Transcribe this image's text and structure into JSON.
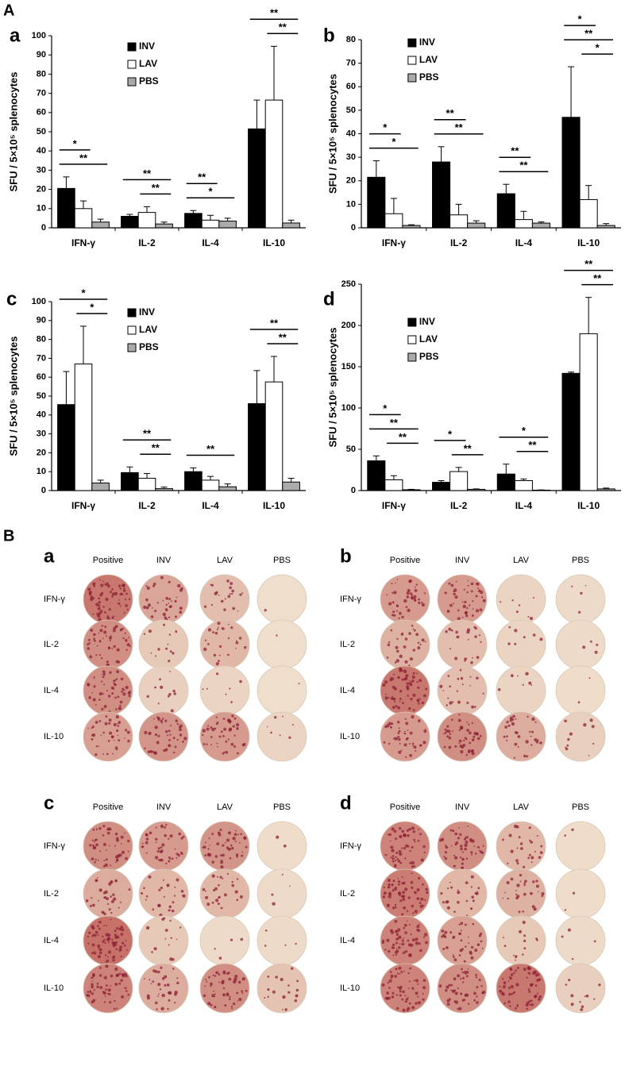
{
  "figure_labels": [
    "A",
    "B"
  ],
  "chart_data": [
    {
      "type": "bar",
      "label": "a",
      "ylabel": "SFU / 5×10⁵ splenocytes",
      "legend": "upper center",
      "categories": [
        "IFN-γ",
        "IL-2",
        "IL-4",
        "IL-10"
      ],
      "series": [
        {
          "name": "INV",
          "color": "#000000",
          "values": [
            20.5,
            6,
            7.5,
            51.5
          ],
          "errors": [
            6,
            1,
            1.5,
            15
          ]
        },
        {
          "name": "LAV",
          "color": "#ffffff",
          "values": [
            10,
            8,
            4,
            66.5
          ],
          "errors": [
            4,
            3,
            2.5,
            28
          ]
        },
        {
          "name": "PBS",
          "color": "#aaaaaa",
          "values": [
            3,
            2,
            3.5,
            2.5
          ],
          "errors": [
            1.5,
            1,
            1.5,
            1.5
          ]
        }
      ],
      "ylim": [
        0,
        100
      ],
      "yticks": [
        0,
        10,
        20,
        30,
        40,
        50,
        60,
        70,
        80,
        90,
        100
      ],
      "annotations": [
        "*",
        "**",
        "**",
        "**",
        "**",
        "*",
        "**",
        "**"
      ]
    },
    {
      "type": "bar",
      "label": "b",
      "ylabel": "SFU / 5×10⁵ splenocytes",
      "legend": "upper left",
      "categories": [
        "IFN-γ",
        "IL-2",
        "IL-4",
        "IL-10"
      ],
      "series": [
        {
          "name": "INV",
          "color": "#000000",
          "values": [
            21.5,
            28,
            14.5,
            47
          ],
          "errors": [
            7,
            6.5,
            4,
            21.5
          ]
        },
        {
          "name": "LAV",
          "color": "#ffffff",
          "values": [
            6,
            5.5,
            3.5,
            12
          ],
          "errors": [
            6.5,
            4.5,
            3.5,
            6
          ]
        },
        {
          "name": "PBS",
          "color": "#aaaaaa",
          "values": [
            1,
            2,
            2,
            1
          ],
          "errors": [
            0.3,
            1,
            0.5,
            0.8
          ]
        }
      ],
      "ylim": [
        0,
        80
      ],
      "yticks": [
        0,
        10,
        20,
        30,
        40,
        50,
        60,
        70,
        80
      ],
      "annotations": [
        "*",
        "*",
        "**",
        "**",
        "**",
        "**",
        "*",
        "**",
        "*"
      ]
    },
    {
      "type": "bar",
      "label": "c",
      "ylabel": "SFU / 5×10⁵ splenocytes",
      "legend": "upper center",
      "categories": [
        "IFN-γ",
        "IL-2",
        "IL-4",
        "IL-10"
      ],
      "series": [
        {
          "name": "INV",
          "color": "#000000",
          "values": [
            45.5,
            9.5,
            10,
            46
          ],
          "errors": [
            17.5,
            3,
            2,
            17.5
          ]
        },
        {
          "name": "LAV",
          "color": "#ffffff",
          "values": [
            67,
            6.5,
            5.5,
            57.5
          ],
          "errors": [
            20,
            2.5,
            2,
            13.5
          ]
        },
        {
          "name": "PBS",
          "color": "#aaaaaa",
          "values": [
            4,
            1,
            2,
            4.5
          ],
          "errors": [
            1.5,
            0.8,
            1.5,
            2
          ]
        }
      ],
      "ylim": [
        0,
        100
      ],
      "yticks": [
        0,
        10,
        20,
        30,
        40,
        50,
        60,
        70,
        80,
        90,
        100
      ],
      "annotations": [
        "*",
        "*",
        "**",
        "**",
        "**",
        "**",
        "**"
      ]
    },
    {
      "type": "bar",
      "label": "d",
      "ylabel": "SFU / 5×10⁵ splenocytes",
      "legend": "upper left",
      "categories": [
        "IFN-γ",
        "IL-2",
        "IL-4",
        "IL-10"
      ],
      "series": [
        {
          "name": "INV",
          "color": "#000000",
          "values": [
            36,
            10,
            20,
            142
          ],
          "errors": [
            6,
            2,
            12,
            1.5
          ]
        },
        {
          "name": "LAV",
          "color": "#ffffff",
          "values": [
            13,
            23,
            12,
            190
          ],
          "errors": [
            5,
            5,
            2,
            44
          ]
        },
        {
          "name": "PBS",
          "color": "#aaaaaa",
          "values": [
            1,
            1.5,
            0.5,
            2
          ],
          "errors": [
            0.5,
            0.5,
            0.3,
            1
          ]
        }
      ],
      "ylim": [
        0,
        250
      ],
      "yticks": [
        0,
        50,
        100,
        150,
        200,
        250
      ],
      "annotations": [
        "*",
        "**",
        "**",
        "*",
        "**",
        "*",
        "**",
        "**",
        "**"
      ]
    }
  ],
  "plates": [
    {
      "label": "a",
      "columns": [
        "Positive",
        "INV",
        "LAV",
        "PBS"
      ],
      "rows": [
        "IFN-γ",
        "IL-2",
        "IL-4",
        "IL-10"
      ]
    },
    {
      "label": "b",
      "columns": [
        "Positive",
        "INV",
        "LAV",
        "PBS"
      ],
      "rows": [
        "IFN-γ",
        "IL-2",
        "IL-4",
        "IL-10"
      ]
    },
    {
      "label": "c",
      "columns": [
        "Positive",
        "INV",
        "LAV",
        "PBS"
      ],
      "rows": [
        "IFN-γ",
        "IL-2",
        "IL-4",
        "IL-10"
      ]
    },
    {
      "label": "d",
      "columns": [
        "Positive",
        "INV",
        "LAV",
        "PBS"
      ],
      "rows": [
        "IFN-γ",
        "IL-2",
        "IL-4",
        "IL-10"
      ]
    }
  ]
}
